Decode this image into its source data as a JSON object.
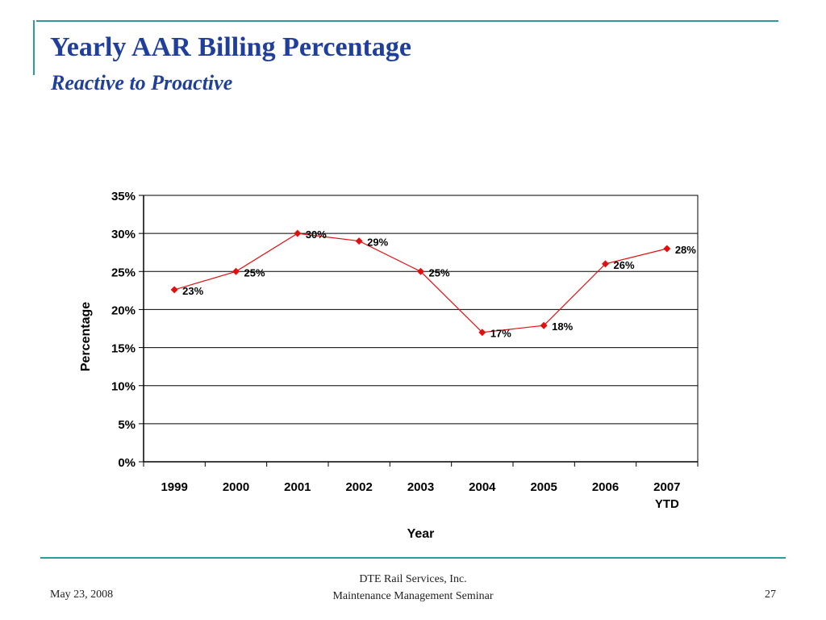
{
  "slide": {
    "title": "Yearly AAR Billing Percentage",
    "subtitle": "Reactive to Proactive",
    "footer": {
      "date": "May 23, 2008",
      "company": "DTE Rail Services, Inc.",
      "event": "Maintenance Management Seminar",
      "page": "27"
    }
  },
  "colors": {
    "title": "#1f3f9a",
    "accent": "#2e9a9a",
    "series": "#e01010"
  },
  "chart_data": {
    "type": "line",
    "xlabel": "Year",
    "ylabel": "Percentage",
    "categories": [
      "1999",
      "2000",
      "2001",
      "2002",
      "2003",
      "2004",
      "2005",
      "2006",
      "2007\nYTD"
    ],
    "series": [
      {
        "values": [
          22.6,
          25.0,
          30.0,
          29.0,
          25.0,
          17.0,
          17.9,
          26.0,
          28.0
        ],
        "labels": [
          "23%",
          "25%",
          "30%",
          "29%",
          "25%",
          "17%",
          "18%",
          "26%",
          "28%"
        ]
      }
    ],
    "ylim": [
      0,
      35
    ],
    "yticks": [
      0,
      5,
      10,
      15,
      20,
      25,
      30,
      35
    ],
    "ytick_labels": [
      "0%",
      "5%",
      "10%",
      "15%",
      "20%",
      "25%",
      "30%",
      "35%"
    ],
    "grid": true,
    "legend": "none"
  }
}
